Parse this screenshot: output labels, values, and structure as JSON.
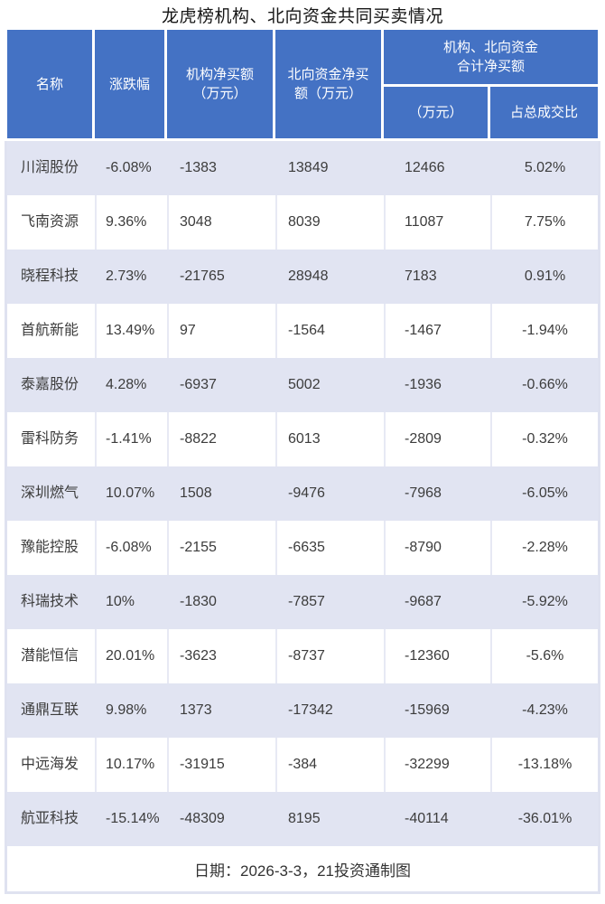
{
  "header": {
    "name": "名称",
    "change": "涨跌幅",
    "inst_l1": "机构净买额",
    "inst_l2": "（万元）",
    "north_l1": "北向资金净买",
    "north_l2": "额（万元）",
    "combined_l1": "机构、北向资金",
    "combined_l2": "合计净买额",
    "combined_unit": "（万元）",
    "combined_ratio": "占总成交比"
  },
  "chart_data": {
    "type": "table",
    "title": "龙虎榜机构、北向资金共同买卖情况",
    "columns": [
      "名称",
      "涨跌幅",
      "机构净买额（万元）",
      "北向资金净买额（万元）",
      "机构、北向资金合计净买额（万元）",
      "机构、北向资金合计净买额占总成交比"
    ],
    "rows": [
      [
        "川润股份",
        "-6.08%",
        "-1383",
        "13849",
        "12466",
        "5.02%"
      ],
      [
        "飞南资源",
        "9.36%",
        "3048",
        "8039",
        "11087",
        "7.75%"
      ],
      [
        "晓程科技",
        "2.73%",
        "-21765",
        "28948",
        "7183",
        "0.91%"
      ],
      [
        "首航新能",
        "13.49%",
        "97",
        "-1564",
        "-1467",
        "-1.94%"
      ],
      [
        "泰嘉股份",
        "4.28%",
        "-6937",
        "5002",
        "-1936",
        "-0.66%"
      ],
      [
        "雷科防务",
        "-1.41%",
        "-8822",
        "6013",
        "-2809",
        "-0.32%"
      ],
      [
        "深圳燃气",
        "10.07%",
        "1508",
        "-9476",
        "-7968",
        "-6.05%"
      ],
      [
        "豫能控股",
        "-6.08%",
        "-2155",
        "-6635",
        "-8790",
        "-2.28%"
      ],
      [
        "科瑞技术",
        "10%",
        "-1830",
        "-7857",
        "-9687",
        "-5.92%"
      ],
      [
        "潜能恒信",
        "20.01%",
        "-3623",
        "-8737",
        "-12360",
        "-5.6%"
      ],
      [
        "通鼎互联",
        "9.98%",
        "1373",
        "-17342",
        "-15969",
        "-4.23%"
      ],
      [
        "中远海发",
        "10.17%",
        "-31915",
        "-384",
        "-32299",
        "-13.18%"
      ],
      [
        "航亚科技",
        "-15.14%",
        "-48309",
        "8195",
        "-40114",
        "-36.01%"
      ]
    ],
    "footnote": "日期：2026-3-3，21投资通制图"
  },
  "colors": {
    "header_bg": "#4472C4",
    "header_text": "#FFFFFF",
    "stripe_bg": "#E1E4F2",
    "grid_line": "#DFE2F0",
    "body_text": "#3C3C3C",
    "title_text": "#161616"
  }
}
